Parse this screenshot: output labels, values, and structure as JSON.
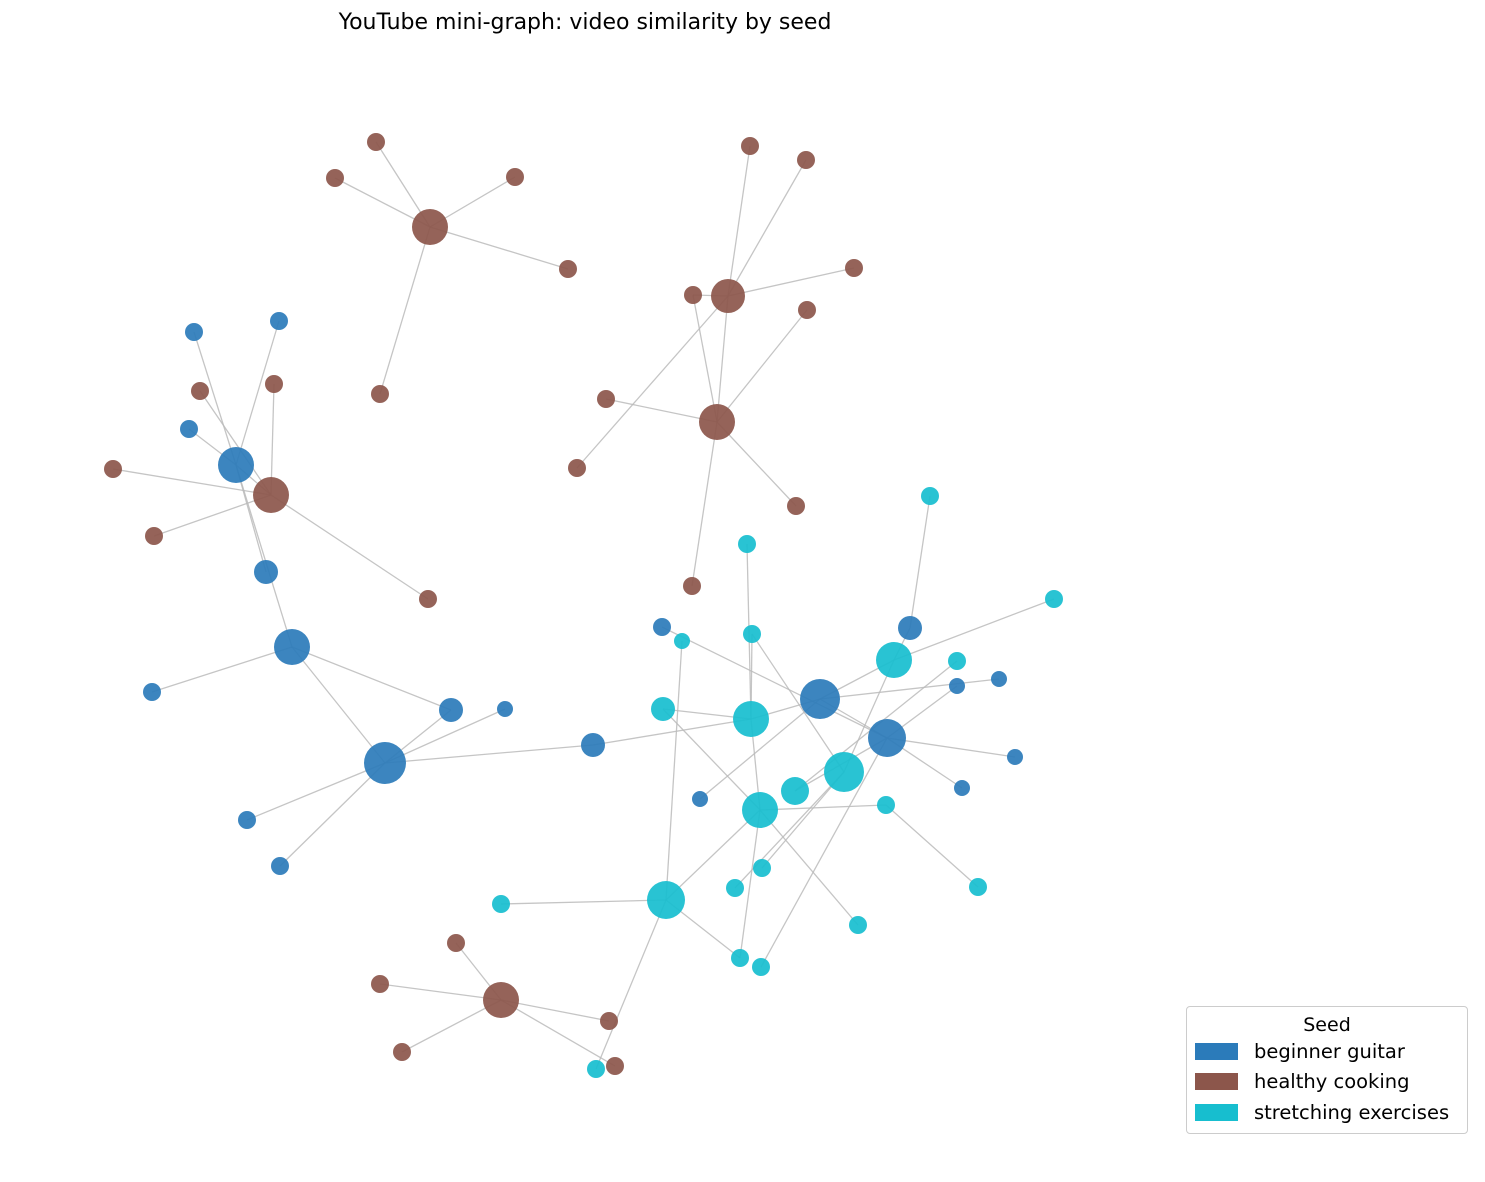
{
  "title": "YouTube mini-graph: video similarity by seed",
  "legend": {
    "title": "Seed",
    "items": [
      {
        "label": "beginner guitar",
        "color": "#2b7bba"
      },
      {
        "label": "healthy cooking",
        "color": "#8c564b"
      },
      {
        "label": "stretching exercises",
        "color": "#17becf"
      }
    ]
  },
  "colors": {
    "beginner guitar": "#2b7bba",
    "healthy cooking": "#8c564b",
    "stretching exercises": "#17becf",
    "edge": "#bbbbbb"
  }
}
